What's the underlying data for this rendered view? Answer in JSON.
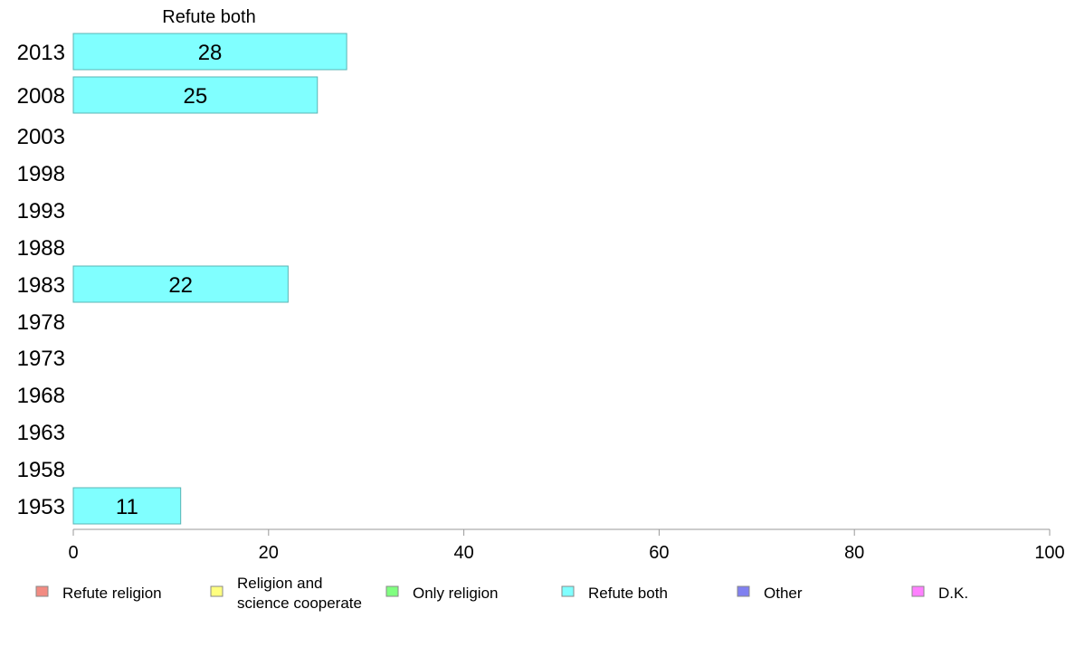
{
  "chart_data": {
    "type": "bar",
    "orientation": "horizontal",
    "title": "Refute both",
    "categories": [
      "2013",
      "2008",
      "2003",
      "1998",
      "1993",
      "1988",
      "1983",
      "1978",
      "1973",
      "1968",
      "1963",
      "1958",
      "1953"
    ],
    "series": [
      {
        "name": "Refute both",
        "values": [
          28,
          25,
          null,
          null,
          null,
          null,
          22,
          null,
          null,
          null,
          null,
          null,
          11
        ],
        "labels": [
          "28",
          "25",
          "",
          "",
          "",
          "",
          "22",
          "",
          "",
          "",
          "",
          "",
          "11"
        ]
      }
    ],
    "xlim": [
      0,
      100
    ],
    "xticks": [
      "0",
      "20",
      "40",
      "60",
      "80",
      "100"
    ],
    "xtick_values": [
      0,
      20,
      40,
      60,
      80,
      100
    ],
    "grid": false,
    "legend_placement": "bottom",
    "legend": [
      {
        "name": "Refute religion",
        "lines": [
          "Refute religion"
        ],
        "color": "#f28b82"
      },
      {
        "name": "Religion and science cooperate",
        "lines": [
          "Religion and",
          "science cooperate"
        ],
        "color": "#ffff80"
      },
      {
        "name": "Only religion",
        "lines": [
          "Only religion"
        ],
        "color": "#80ff80"
      },
      {
        "name": "Refute both",
        "lines": [
          "Refute both"
        ],
        "color": "#80ffff"
      },
      {
        "name": "Other",
        "lines": [
          "Other"
        ],
        "color": "#8080f0"
      },
      {
        "name": "D.K.",
        "lines": [
          "D.K."
        ],
        "color": "#ff80ff"
      }
    ],
    "colors": {
      "bar_fill": "#80ffff",
      "bar_stroke": "#5ab4b4",
      "axis": "#999999"
    }
  }
}
